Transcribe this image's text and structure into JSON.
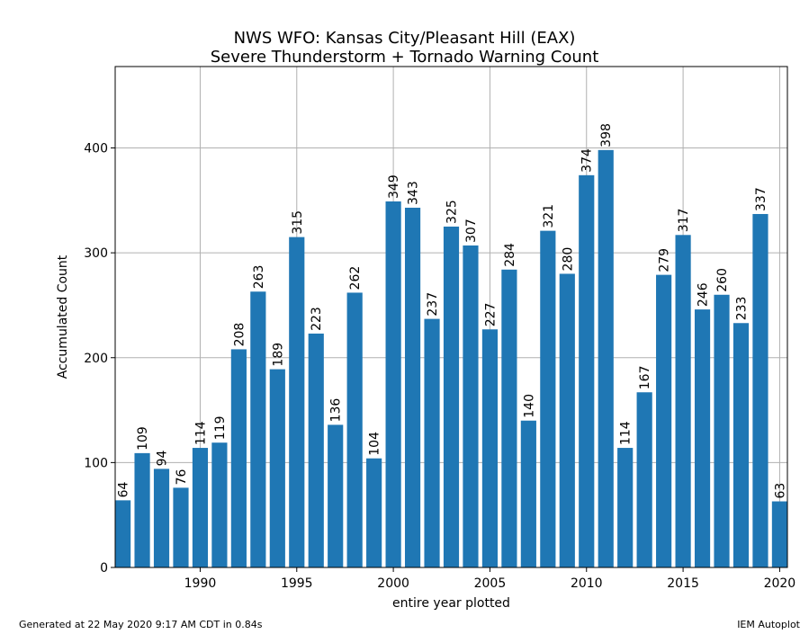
{
  "chart_data": {
    "type": "bar",
    "title_lines": [
      "NWS WFO: Kansas City/Pleasant Hill (EAX)",
      "Severe Thunderstorm + Tornado Warning Count"
    ],
    "xlabel": "entire year plotted",
    "ylabel": "Accumulated Count",
    "x": [
      1986,
      1987,
      1988,
      1989,
      1990,
      1991,
      1992,
      1993,
      1994,
      1995,
      1996,
      1997,
      1998,
      1999,
      2000,
      2001,
      2002,
      2003,
      2004,
      2005,
      2006,
      2007,
      2008,
      2009,
      2010,
      2011,
      2012,
      2013,
      2014,
      2015,
      2016,
      2017,
      2018,
      2019,
      2020
    ],
    "values": [
      64,
      109,
      94,
      76,
      114,
      119,
      208,
      263,
      189,
      315,
      223,
      136,
      262,
      104,
      349,
      343,
      237,
      325,
      307,
      227,
      284,
      140,
      321,
      280,
      374,
      398,
      114,
      167,
      279,
      317,
      246,
      260,
      233,
      337,
      63
    ],
    "xticks": [
      1990,
      1995,
      2000,
      2005,
      2010,
      2015,
      2020
    ],
    "yticks": [
      0,
      100,
      200,
      300,
      400
    ],
    "xlim": [
      1985.6,
      2020.4
    ],
    "ylim": [
      0,
      477.6
    ],
    "grid": true,
    "bar_color": "#1f77b4"
  },
  "footer": {
    "generated": "Generated at 22 May 2020 9:17 AM CDT in 0.84s",
    "source": "IEM Autoplot"
  }
}
